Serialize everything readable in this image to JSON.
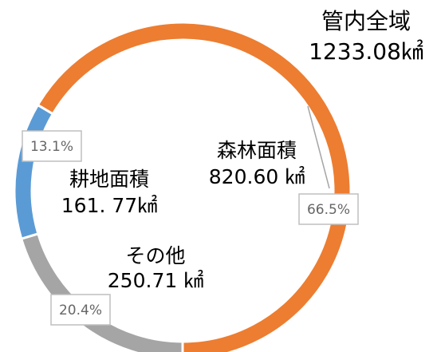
{
  "chart_data": {
    "type": "pie",
    "title": "管内全域",
    "subtitle": "1233.08㎢",
    "categories": [
      "森林面積",
      "その他",
      "耕地面積"
    ],
    "area_labels": [
      "820.60 ㎢",
      "250.71 ㎢",
      "161. 77㎢"
    ],
    "values": [
      66.5,
      20.4,
      13.1
    ],
    "value_labels": [
      "66.5%",
      "20.4%",
      "13.1%"
    ],
    "colors": [
      "#ED7D31",
      "#A5A5A5",
      "#5B9BD5"
    ],
    "donut": true
  }
}
